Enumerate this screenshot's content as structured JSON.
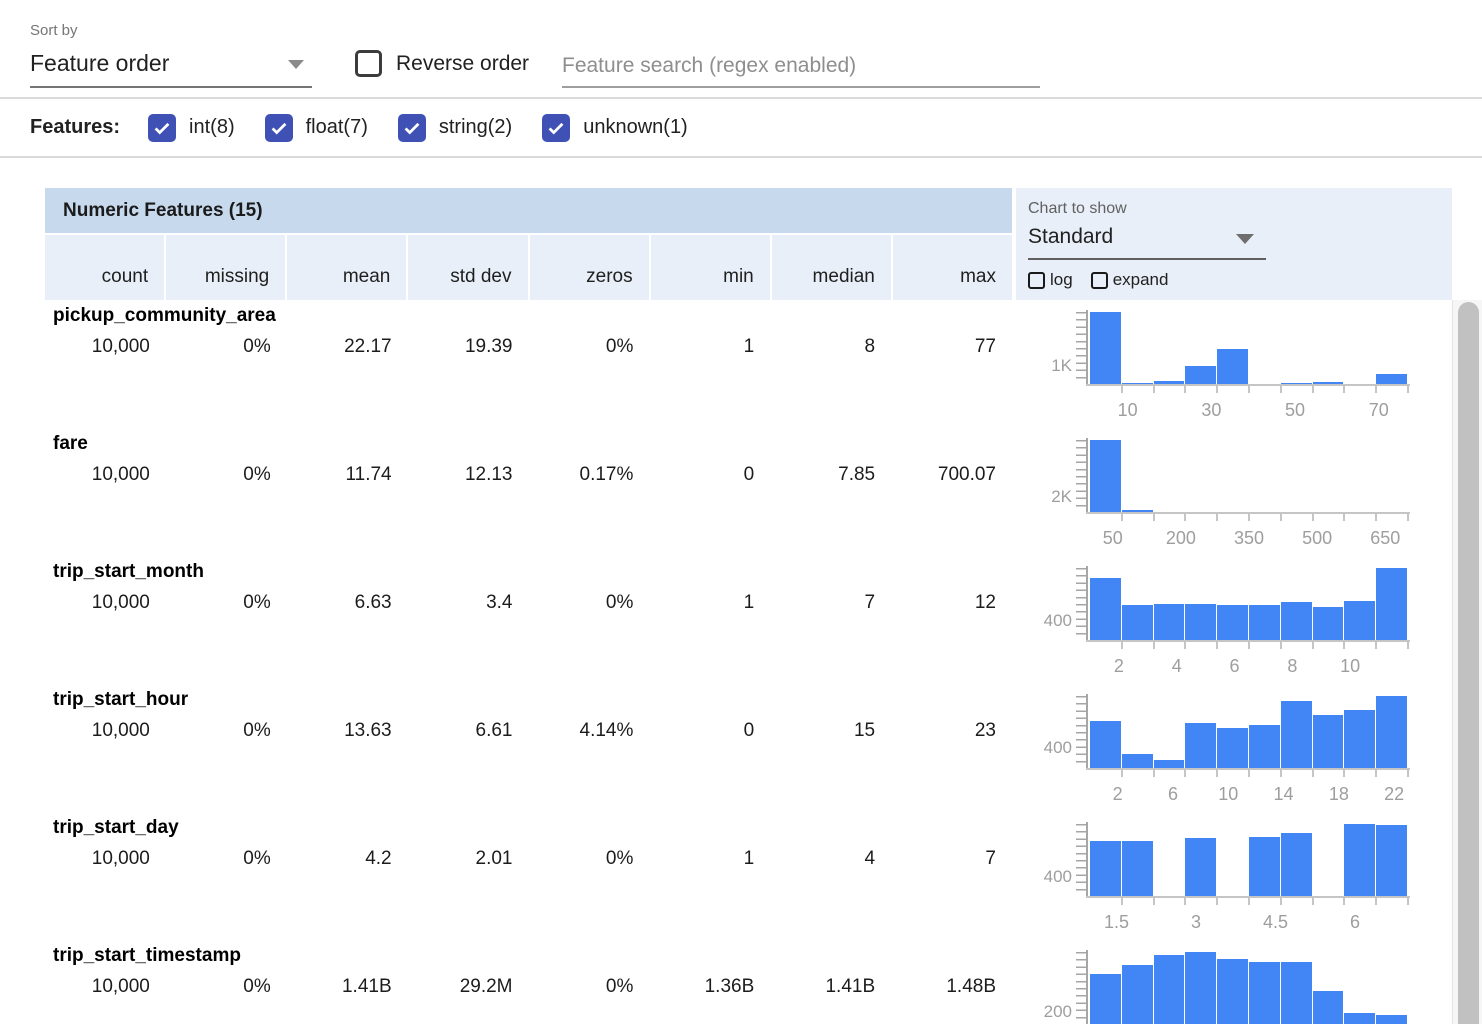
{
  "toolbar": {
    "sort_by_label": "Sort by",
    "sort_by_value": "Feature order",
    "reverse_order_label": "Reverse order",
    "search_placeholder": "Feature search (regex enabled)"
  },
  "filters": {
    "label": "Features:",
    "items": [
      {
        "label": "int(8)",
        "checked": true
      },
      {
        "label": "float(7)",
        "checked": true
      },
      {
        "label": "string(2)",
        "checked": true
      },
      {
        "label": "unknown(1)",
        "checked": true
      }
    ]
  },
  "chart_panel": {
    "label": "Chart to show",
    "selected": "Standard",
    "log_label": "log",
    "expand_label": "expand",
    "log_checked": false,
    "expand_checked": false
  },
  "table": {
    "title": "Numeric Features (15)",
    "columns": [
      "count",
      "missing",
      "mean",
      "std dev",
      "zeros",
      "min",
      "median",
      "max"
    ],
    "rows": [
      {
        "name": "pickup_community_area",
        "values": [
          "10,000",
          "0%",
          "22.17",
          "19.39",
          "0%",
          "1",
          "8",
          "77"
        ]
      },
      {
        "name": "fare",
        "values": [
          "10,000",
          "0%",
          "11.74",
          "12.13",
          "0.17%",
          "0",
          "7.85",
          "700.07"
        ]
      },
      {
        "name": "trip_start_month",
        "values": [
          "10,000",
          "0%",
          "6.63",
          "3.4",
          "0%",
          "1",
          "7",
          "12"
        ]
      },
      {
        "name": "trip_start_hour",
        "values": [
          "10,000",
          "0%",
          "13.63",
          "6.61",
          "4.14%",
          "0",
          "15",
          "23"
        ]
      },
      {
        "name": "trip_start_day",
        "values": [
          "10,000",
          "0%",
          "4.2",
          "2.01",
          "0%",
          "1",
          "4",
          "7"
        ]
      },
      {
        "name": "trip_start_timestamp",
        "values": [
          "10,000",
          "0%",
          "1.41B",
          "29.2M",
          "0%",
          "1.36B",
          "1.41B",
          "1.48B"
        ]
      }
    ]
  },
  "chart_data": [
    {
      "type": "histogram",
      "feature": "pickup_community_area",
      "x_domain": [
        1,
        77
      ],
      "x_ticks": [
        {
          "value": 10,
          "label": "10"
        },
        {
          "value": 30,
          "label": "30"
        },
        {
          "value": 50,
          "label": "50"
        },
        {
          "value": 70,
          "label": "70"
        }
      ],
      "y_tick": {
        "value": 1000,
        "label": "1K"
      },
      "bin_counts": [
        4000,
        60,
        160,
        980,
        1920,
        20,
        30,
        120,
        15,
        550
      ]
    },
    {
      "type": "histogram",
      "feature": "fare",
      "x_domain": [
        0,
        700
      ],
      "x_ticks": [
        {
          "value": 50,
          "label": "50"
        },
        {
          "value": 200,
          "label": "200"
        },
        {
          "value": 350,
          "label": "350"
        },
        {
          "value": 500,
          "label": "500"
        },
        {
          "value": 650,
          "label": "650"
        }
      ],
      "y_tick": {
        "value": 2000,
        "label": "2K"
      },
      "bin_counts": [
        9700,
        220,
        45,
        15,
        8,
        4,
        3,
        2,
        1,
        2
      ]
    },
    {
      "type": "histogram",
      "feature": "trip_start_month",
      "x_domain": [
        1,
        12
      ],
      "x_ticks": [
        {
          "value": 2,
          "label": "2"
        },
        {
          "value": 4,
          "label": "4"
        },
        {
          "value": 6,
          "label": "6"
        },
        {
          "value": 8,
          "label": "8"
        },
        {
          "value": 10,
          "label": "10"
        }
      ],
      "y_tick": {
        "value": 400,
        "label": "400"
      },
      "bin_counts": [
        1290,
        730,
        760,
        755,
        730,
        735,
        790,
        700,
        810,
        1510
      ]
    },
    {
      "type": "histogram",
      "feature": "trip_start_hour",
      "x_domain": [
        0,
        23
      ],
      "x_ticks": [
        {
          "value": 2,
          "label": "2"
        },
        {
          "value": 6,
          "label": "6"
        },
        {
          "value": 10,
          "label": "10"
        },
        {
          "value": 14,
          "label": "14"
        },
        {
          "value": 18,
          "label": "18"
        },
        {
          "value": 22,
          "label": "22"
        }
      ],
      "y_tick": {
        "value": 400,
        "label": "400"
      },
      "bin_counts": [
        930,
        270,
        160,
        890,
        790,
        850,
        1330,
        1060,
        1160,
        1430
      ]
    },
    {
      "type": "histogram",
      "feature": "trip_start_day",
      "x_domain": [
        1,
        7
      ],
      "x_ticks": [
        {
          "value": 1.5,
          "label": "1.5"
        },
        {
          "value": 3,
          "label": "3"
        },
        {
          "value": 4.5,
          "label": "4.5"
        },
        {
          "value": 6,
          "label": "6"
        }
      ],
      "y_tick": {
        "value": 400,
        "label": "400"
      },
      "bin_counts": [
        1150,
        1150,
        0,
        1200,
        0,
        1220,
        1320,
        0,
        1500,
        1480
      ]
    },
    {
      "type": "histogram",
      "feature": "trip_start_timestamp",
      "x_domain": [
        1360000000,
        1480000000
      ],
      "x_ticks": [],
      "y_tick": {
        "value": 200,
        "label": "200"
      },
      "bin_counts": [
        840,
        980,
        1150,
        1200,
        1090,
        1040,
        1040,
        545,
        180,
        150
      ]
    }
  ],
  "colors": {
    "bar": "#4285f4",
    "accent_checkbox": "#3f51b5",
    "table_title_bg": "#c7d9ec",
    "header_bg": "#e8eff8",
    "axis_gray": "#c5c5c5",
    "label_gray": "#9e9e9e"
  }
}
